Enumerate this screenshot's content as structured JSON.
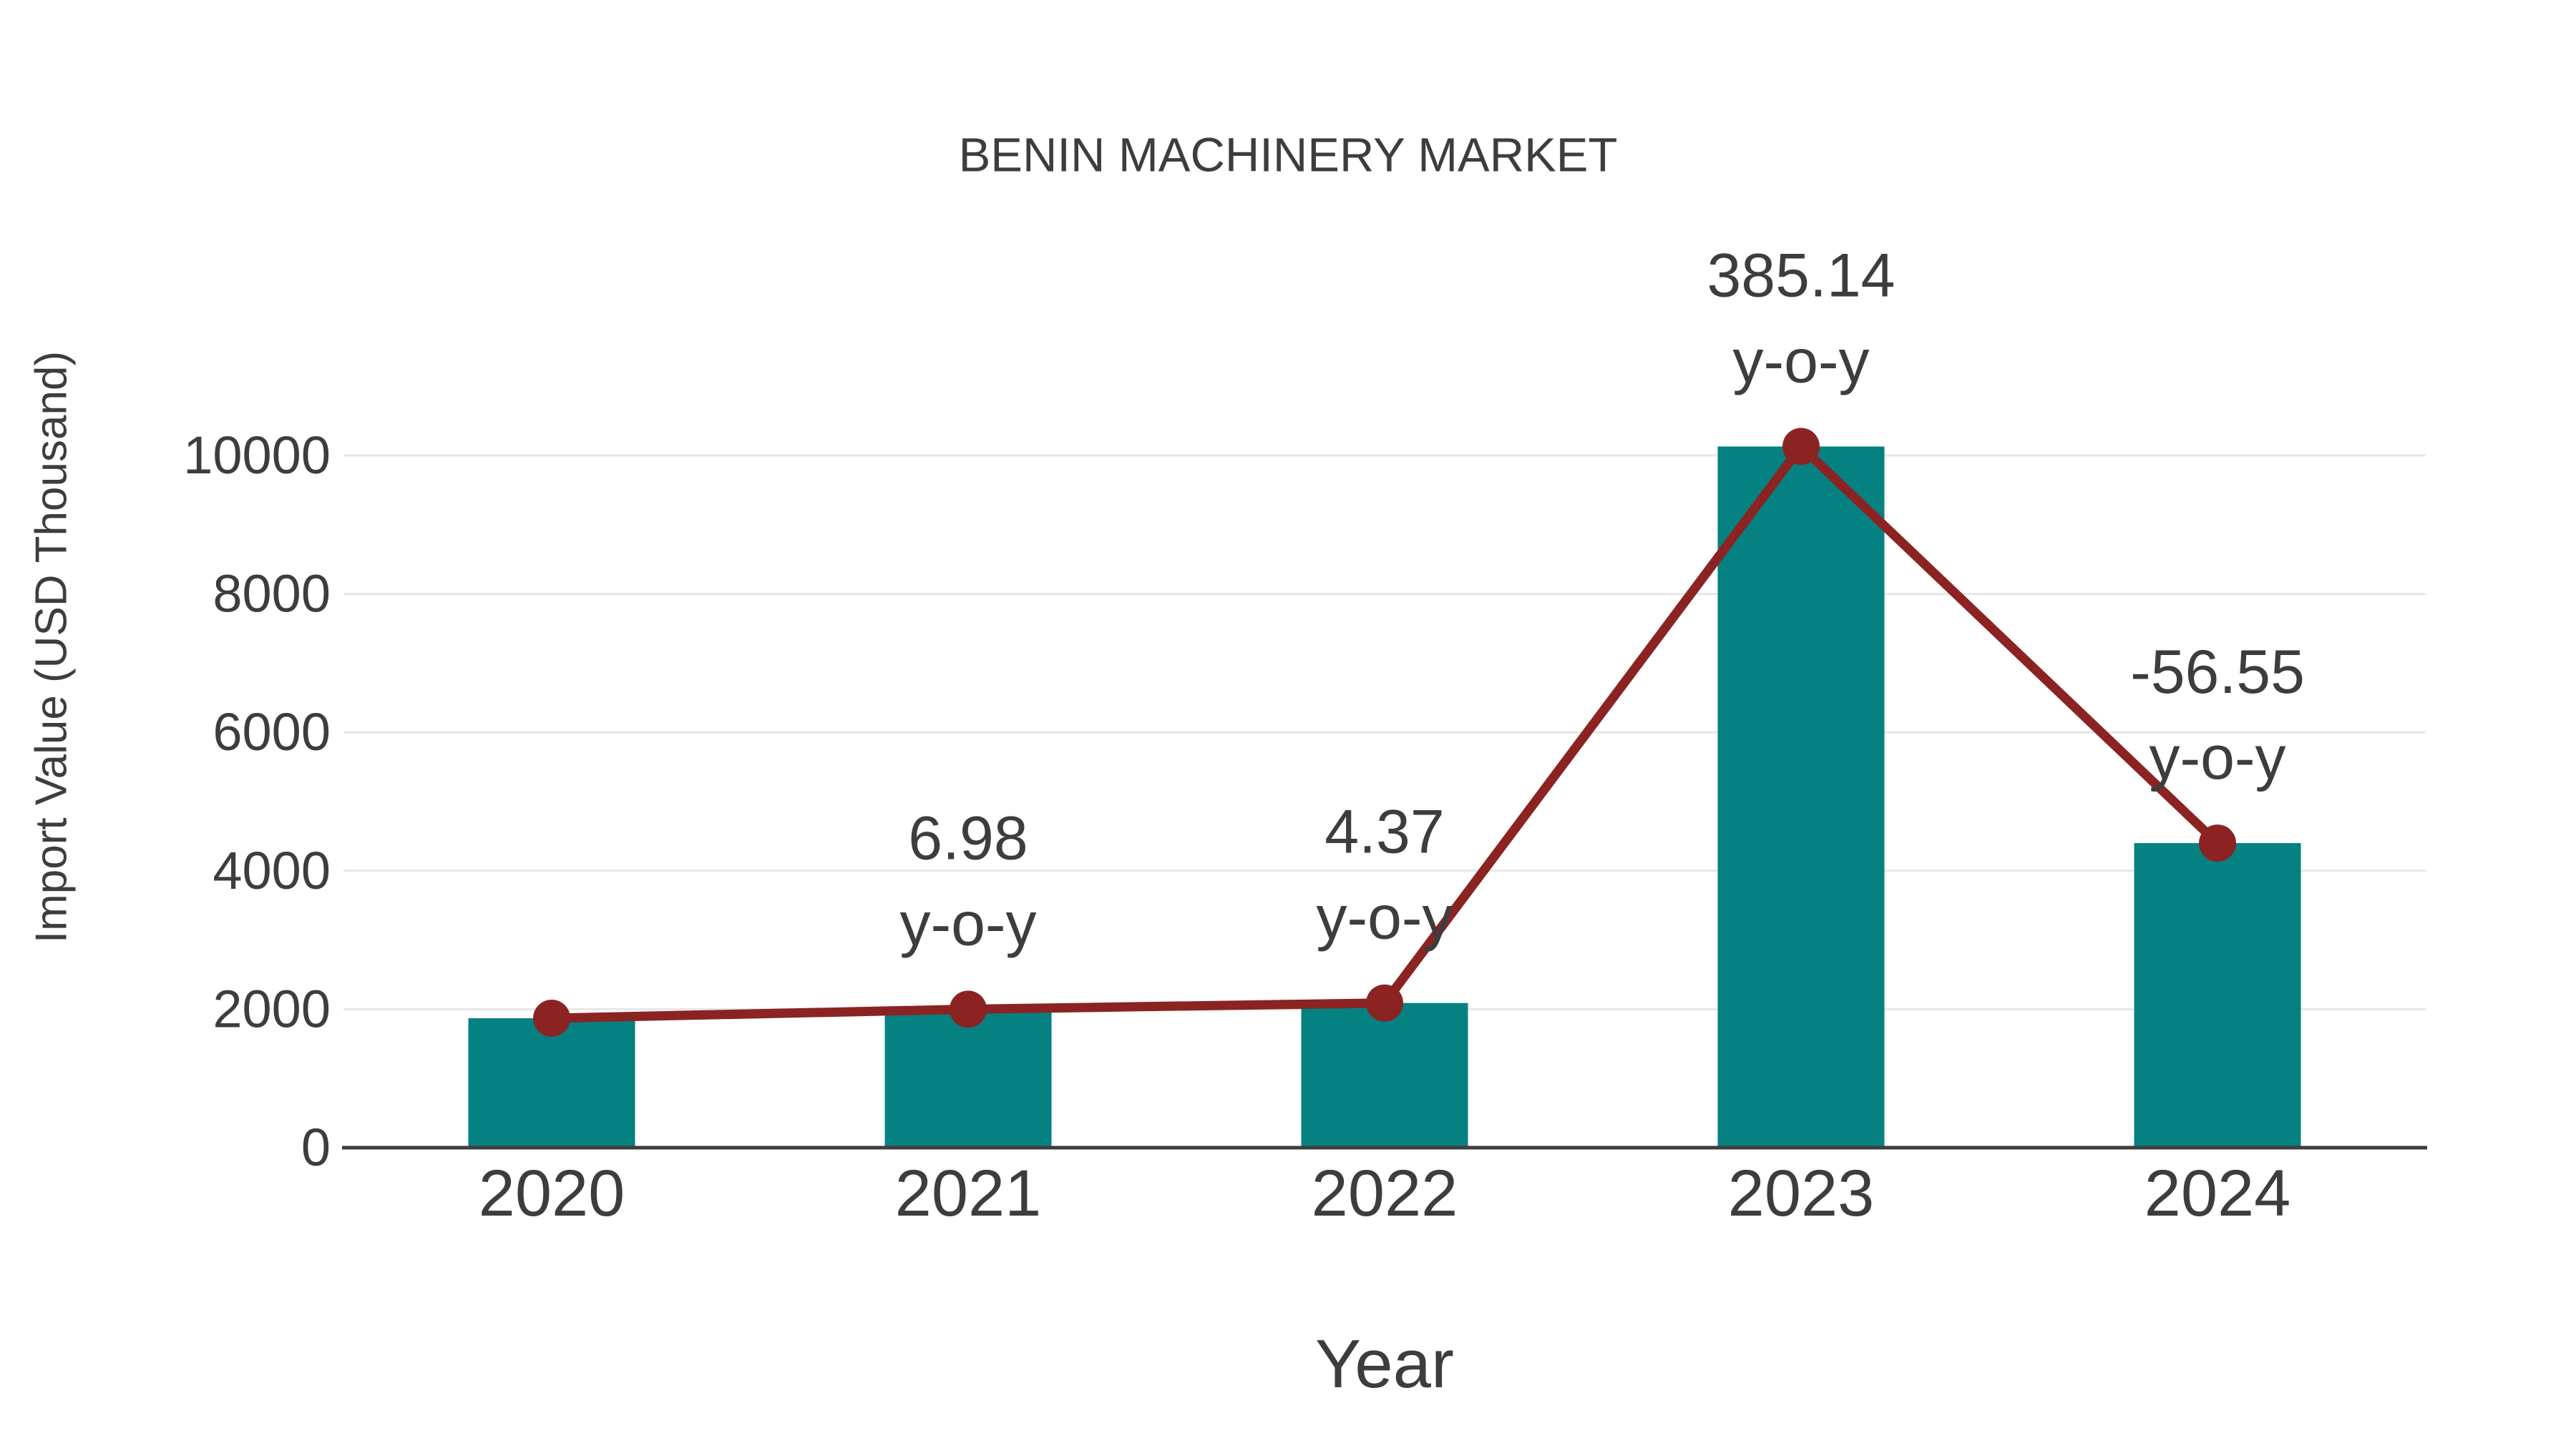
{
  "page": {
    "background": "#ffffff"
  },
  "colors": {
    "bar": "#068181",
    "line": "#8b2323",
    "marker": "#8b2323",
    "grid": "#e7e7e7",
    "axis": "#3d3d3d",
    "text": "#3d3d3d"
  },
  "chart_data": {
    "type": "bar",
    "title": "BENIN MACHINERY MARKET",
    "xlabel": "Year",
    "ylabel": "Import Value (USD Thousand)",
    "categories": [
      "2020",
      "2021",
      "2022",
      "2023",
      "2024"
    ],
    "series": [
      {
        "name": "Import Value (USD Thousand)",
        "type": "bar",
        "values": [
          1870,
          2000,
          2090,
          10130,
          4400
        ]
      },
      {
        "name": "Import Value trend line",
        "type": "line",
        "values": [
          1870,
          2000,
          2090,
          10130,
          4400
        ]
      }
    ],
    "annotations": [
      {
        "category": "2021",
        "lines": [
          "6.98",
          "y-o-y"
        ]
      },
      {
        "category": "2022",
        "lines": [
          "4.37",
          "y-o-y"
        ]
      },
      {
        "category": "2023",
        "lines": [
          "385.14",
          "y-o-y"
        ]
      },
      {
        "category": "2024",
        "lines": [
          "-56.55",
          "y-o-y"
        ]
      }
    ],
    "yticks": [
      0,
      2000,
      4000,
      6000,
      8000,
      10000
    ],
    "ylim": [
      0,
      11000
    ],
    "grid": "horizontal",
    "legend": "none"
  }
}
